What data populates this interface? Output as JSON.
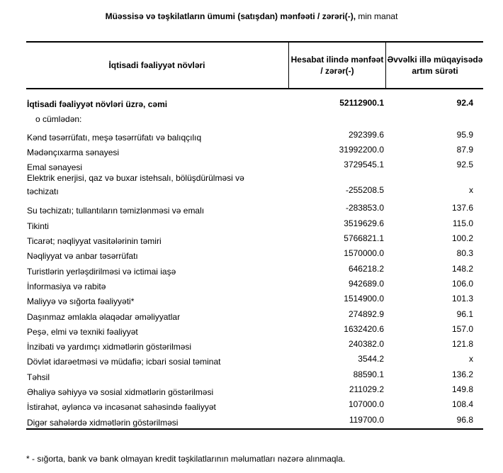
{
  "title": {
    "bold": "Müəssisə və təşkilatların ümumi (satışdan) mənfəəti / zərəri(-),",
    "normal": " min manat"
  },
  "headers": {
    "activity": "İqtisadi fəaliyyət növləri",
    "profit": "Hesabat ilində mənfəət / zərər(-)",
    "growth": "Əvvəlki illə müqayisədə artım sürəti"
  },
  "total": {
    "name": "İqtisadi fəaliyyət növləri üzrə, cəmi",
    "value": "52112900.1",
    "growth": "92.4"
  },
  "subheading": "o cümlədən:",
  "rows": [
    {
      "name": "Kənd təsərrüfatı, meşə təsərrüfatı və balıqçılıq",
      "value": "292399.6",
      "growth": "95.9"
    },
    {
      "name": "Mədənçıxarma sənayesi",
      "value": "31992200.0",
      "growth": "87.9"
    },
    {
      "name": "Emal sənayesi",
      "value": "3729545.1",
      "growth": "92.5"
    },
    {
      "name": "Elektrik enerjisi, qaz və buxar istehsalı, bölüşdürülməsi və təchizatı",
      "value": "-255208.5",
      "growth": "x"
    },
    {
      "name": "Su təchizatı; tullantıların təmizlənməsi və emalı",
      "value": "-283853.0",
      "growth": "137.6"
    },
    {
      "name": "Tikinti",
      "value": "3519629.6",
      "growth": "115.0"
    },
    {
      "name": "Ticarət; nəqliyyat vasitələrinin təmiri",
      "value": "5766821.1",
      "growth": "100.2"
    },
    {
      "name": "Nəqliyyat və anbar təsərrüfatı",
      "value": "1570000.0",
      "growth": "80.3"
    },
    {
      "name": "Turistlərin yerləşdirilməsi və ictimai iaşə",
      "value": "646218.2",
      "growth": "148.2"
    },
    {
      "name": "İnformasiya və rabitə",
      "value": "942689.0",
      "growth": "106.0"
    },
    {
      "name": "Maliyyə və sığorta fəaliyyəti*",
      "value": "1514900.0",
      "growth": "101.3"
    },
    {
      "name": "Daşınmaz əmlakla əlaqədar əməliyyatlar",
      "value": "274892.9",
      "growth": "96.1"
    },
    {
      "name": "Peşə, elmi və texniki fəaliyyət",
      "value": "1632420.6",
      "growth": "157.0"
    },
    {
      "name": "İnzibati və yardımçı xidmətlərin göstərilməsi",
      "value": "240382.0",
      "growth": "121.8"
    },
    {
      "name": "Dövlət idarəetməsi və müdafiə; icbari sosial təminat",
      "value": "3544.2",
      "growth": "x"
    },
    {
      "name": "Təhsil",
      "value": "88590.1",
      "growth": "136.2"
    },
    {
      "name": "Əhaliyə səhiyyə və sosial xidmətlərin göstərilməsi",
      "value": "211029.2",
      "growth": "149.8"
    },
    {
      "name": "İstirahət, əyləncə və incəsənət sahəsində fəaliyyət",
      "value": "107000.0",
      "growth": "108.4"
    },
    {
      "name": "Digər sahələrdə xidmətlərin göstərilməsi",
      "value": "119700.0",
      "growth": "96.8"
    }
  ],
  "footnote": "* - sığorta, bank və bank olmayan kredit təşkilatlarının məlumatları nəzərə alınmaqla."
}
